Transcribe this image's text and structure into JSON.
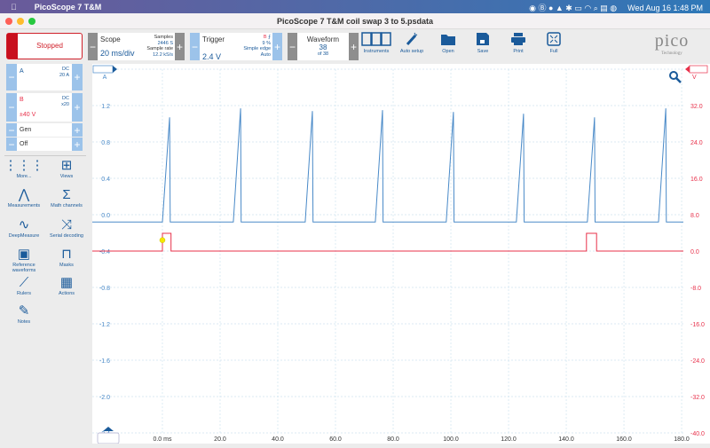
{
  "menubar": {
    "app": "PicoScope 7 T&M",
    "datetime": "Wed Aug 16  1:48 PM"
  },
  "window": {
    "title": "PicoScope 7 T&M coil swap 3 to 5.psdata"
  },
  "toolbar": {
    "run_status": "Stopped",
    "scope": {
      "label": "Scope",
      "timebase": "20 ms/div",
      "samples_label": "Samples",
      "samples": "2446 S",
      "rate_label": "Sample rate",
      "rate": "12.2 kS/s"
    },
    "trigger": {
      "label": "Trigger",
      "channel": "B",
      "level": "2.4 V",
      "pretrigger": "9 %",
      "type": "Simple edge",
      "mode": "Auto"
    },
    "waveform": {
      "label": "Waveform",
      "current": "38",
      "total": "of 38"
    },
    "buttons": [
      {
        "label": "Instruments",
        "icon": "instruments-icon"
      },
      {
        "label": "Auto setup",
        "icon": "wand-icon"
      },
      {
        "label": "Open",
        "icon": "folder-icon"
      },
      {
        "label": "Save",
        "icon": "save-icon"
      },
      {
        "label": "Print",
        "icon": "print-icon"
      },
      {
        "label": "Full",
        "icon": "fullscreen-icon"
      }
    ],
    "logo": "pico Technology"
  },
  "channels": {
    "a": {
      "name": "A",
      "coupling": "DC",
      "range": "20 A"
    },
    "b": {
      "name": "B",
      "coupling": "DC",
      "probe": "x20",
      "range": "±40 V"
    },
    "gen": {
      "name": "Gen",
      "state": "Off"
    }
  },
  "sidebar": [
    {
      "label": "More...",
      "icon": "grid-dots-icon"
    },
    {
      "label": "Views",
      "icon": "views-icon"
    },
    {
      "label": "Measurements",
      "icon": "caliper-icon"
    },
    {
      "label": "Math channels",
      "icon": "sigma-icon"
    },
    {
      "label": "DeepMeasure",
      "icon": "deepmeasure-icon"
    },
    {
      "label": "Serial decoding",
      "icon": "serial-icon"
    },
    {
      "label": "Reference waveforms",
      "icon": "reference-icon"
    },
    {
      "label": "Masks",
      "icon": "mask-icon"
    },
    {
      "label": "Rulers",
      "icon": "ruler-icon"
    },
    {
      "label": "Actions",
      "icon": "clapper-icon"
    },
    {
      "label": "Notes",
      "icon": "notes-icon"
    }
  ],
  "colors": {
    "channel_a": "#4a8ac8",
    "channel_b": "#e8304a",
    "accent": "#1a5a9a",
    "stopped": "#c8101e"
  },
  "chart_data": {
    "type": "line",
    "xlabel_unit": "ms",
    "xlim": [
      -24.3,
      180.6
    ],
    "xticks": [
      "0.0 ms",
      "20.0",
      "40.0",
      "60.0",
      "80.0",
      "100.0",
      "120.0",
      "140.0",
      "160.0",
      "180.0"
    ],
    "grid": true,
    "left_axis": {
      "unit": "A",
      "ylim": [
        -2.4,
        1.6
      ],
      "ticks": [
        "1.6",
        "1.2",
        "0.8",
        "0.4",
        "0.0",
        "-0.4",
        "-0.8",
        "-1.2",
        "-1.6",
        "-2.0",
        "-2.4"
      ]
    },
    "right_axis": {
      "unit": "V",
      "ylim": [
        -40,
        40
      ],
      "ticks": [
        "40.0",
        "32.0",
        "24.0",
        "16.0",
        "8.0",
        "0.0",
        "-8.0",
        "-16.0",
        "-24.0",
        "-32.0",
        "-40.0"
      ]
    },
    "series": [
      {
        "channel": "A",
        "axis": "left",
        "color": "#4a8ac8",
        "x": [
          -24.3,
          0.0,
          2.5,
          2.7,
          24.6,
          27.1,
          27.3,
          49.5,
          52.0,
          52.2,
          73.8,
          76.3,
          76.5,
          98.4,
          100.9,
          101.1,
          122.7,
          125.2,
          125.4,
          147.3,
          149.8,
          150.0,
          172.0,
          174.5,
          174.7,
          180.6
        ],
        "y": [
          -0.08,
          -0.08,
          1.07,
          -0.08,
          -0.08,
          1.17,
          -0.08,
          -0.08,
          1.14,
          -0.08,
          -0.08,
          1.15,
          -0.08,
          -0.08,
          1.13,
          -0.08,
          -0.08,
          1.11,
          -0.08,
          -0.08,
          1.07,
          -0.08,
          -0.08,
          1.17,
          -0.08,
          -0.08
        ]
      },
      {
        "channel": "B",
        "axis": "right",
        "color": "#e8304a",
        "x": [
          -24.3,
          0.0,
          0.0,
          3.0,
          3.0,
          147.0,
          147.0,
          150.5,
          150.5,
          180.6
        ],
        "y": [
          0,
          0,
          3.9,
          3.9,
          0,
          0,
          3.9,
          3.9,
          0,
          0
        ]
      }
    ],
    "trigger_marker": {
      "time": 0.0,
      "level": 2.4
    }
  }
}
